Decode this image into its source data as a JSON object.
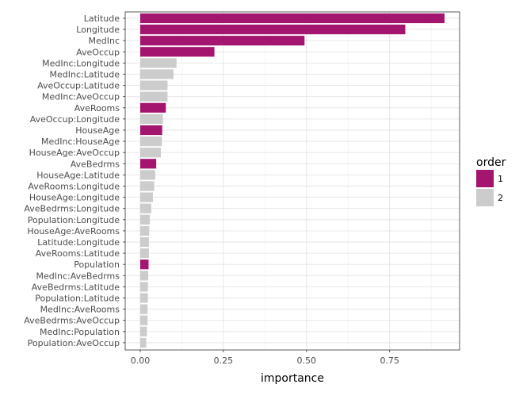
{
  "chart_data": {
    "type": "bar",
    "orientation": "horizontal",
    "xlabel": "importance",
    "ylabel": "",
    "xlim": [
      0,
      0.92
    ],
    "x_ticks": [
      0.0,
      0.25,
      0.5,
      0.75
    ],
    "x_tick_labels": [
      "0.00",
      "0.25",
      "0.50",
      "0.75"
    ],
    "grid": true,
    "legend": {
      "title": "order",
      "placement": "right",
      "entries": [
        {
          "label": "1",
          "color": "#a3156e"
        },
        {
          "label": "2",
          "color": "#cccccc"
        }
      ]
    },
    "categories": [
      "Latitude",
      "Longitude",
      "MedInc",
      "AveOccup",
      "MedInc:Longitude",
      "MedInc:Latitude",
      "AveOccup:Latitude",
      "MedInc:AveOccup",
      "AveRooms",
      "AveOccup:Longitude",
      "HouseAge",
      "MedInc:HouseAge",
      "HouseAge:AveOccup",
      "AveBedrms",
      "HouseAge:Latitude",
      "AveRooms:Longitude",
      "HouseAge:Longitude",
      "AveBedrms:Longitude",
      "Population:Longitude",
      "HouseAge:AveRooms",
      "Latitude:Longitude",
      "AveRooms:Latitude",
      "Population",
      "MedInc:AveBedrms",
      "AveBedrms:Latitude",
      "Population:Latitude",
      "MedInc:AveRooms",
      "AveBedrms:AveOccup",
      "MedInc:Population",
      "Population:AveOccup"
    ],
    "values": [
      0.915,
      0.797,
      0.494,
      0.223,
      0.109,
      0.1,
      0.082,
      0.082,
      0.077,
      0.068,
      0.066,
      0.065,
      0.062,
      0.048,
      0.045,
      0.042,
      0.038,
      0.033,
      0.029,
      0.027,
      0.026,
      0.026,
      0.025,
      0.024,
      0.023,
      0.023,
      0.022,
      0.022,
      0.02,
      0.018
    ],
    "order": [
      1,
      1,
      1,
      1,
      2,
      2,
      2,
      2,
      1,
      2,
      1,
      2,
      2,
      1,
      2,
      2,
      2,
      2,
      2,
      2,
      2,
      2,
      1,
      2,
      2,
      2,
      2,
      2,
      2,
      2
    ]
  }
}
